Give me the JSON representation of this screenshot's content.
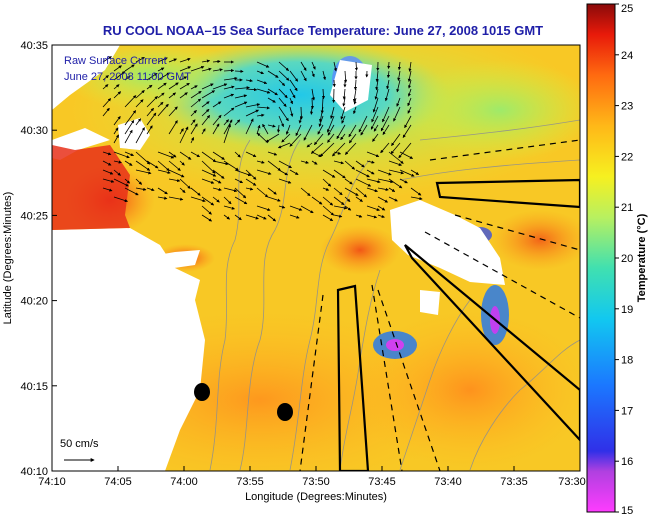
{
  "chart_data": {
    "type": "heatmap",
    "title": "RU COOL  NOAA–15  Sea Surface Temperature:  June 27, 2008 1015 GMT",
    "xlabel": "Longitude (Degrees:Minutes)",
    "ylabel": "Latitude (Degrees:Minutes)",
    "x_ticks": [
      "74:10",
      "74:05",
      "74:00",
      "73:55",
      "73:50",
      "73:45",
      "73:40",
      "73:35",
      "73:30"
    ],
    "y_ticks": [
      "40:35",
      "40:30",
      "40:25",
      "40:20",
      "40:15",
      "40:10"
    ],
    "colorbar": {
      "label": "Temperature (°C)",
      "min": 15,
      "max": 25,
      "ticks": [
        "25",
        "24",
        "23",
        "22",
        "21",
        "20",
        "19",
        "18",
        "17",
        "16",
        "15"
      ]
    },
    "annotations": {
      "current_label": "Raw Surface Current",
      "current_time": "June 27, 2008 11:00 GMT",
      "scale_label": "50 cm/s"
    },
    "colors": {
      "title": "#1f1fa8",
      "land": "#ffffff"
    }
  }
}
